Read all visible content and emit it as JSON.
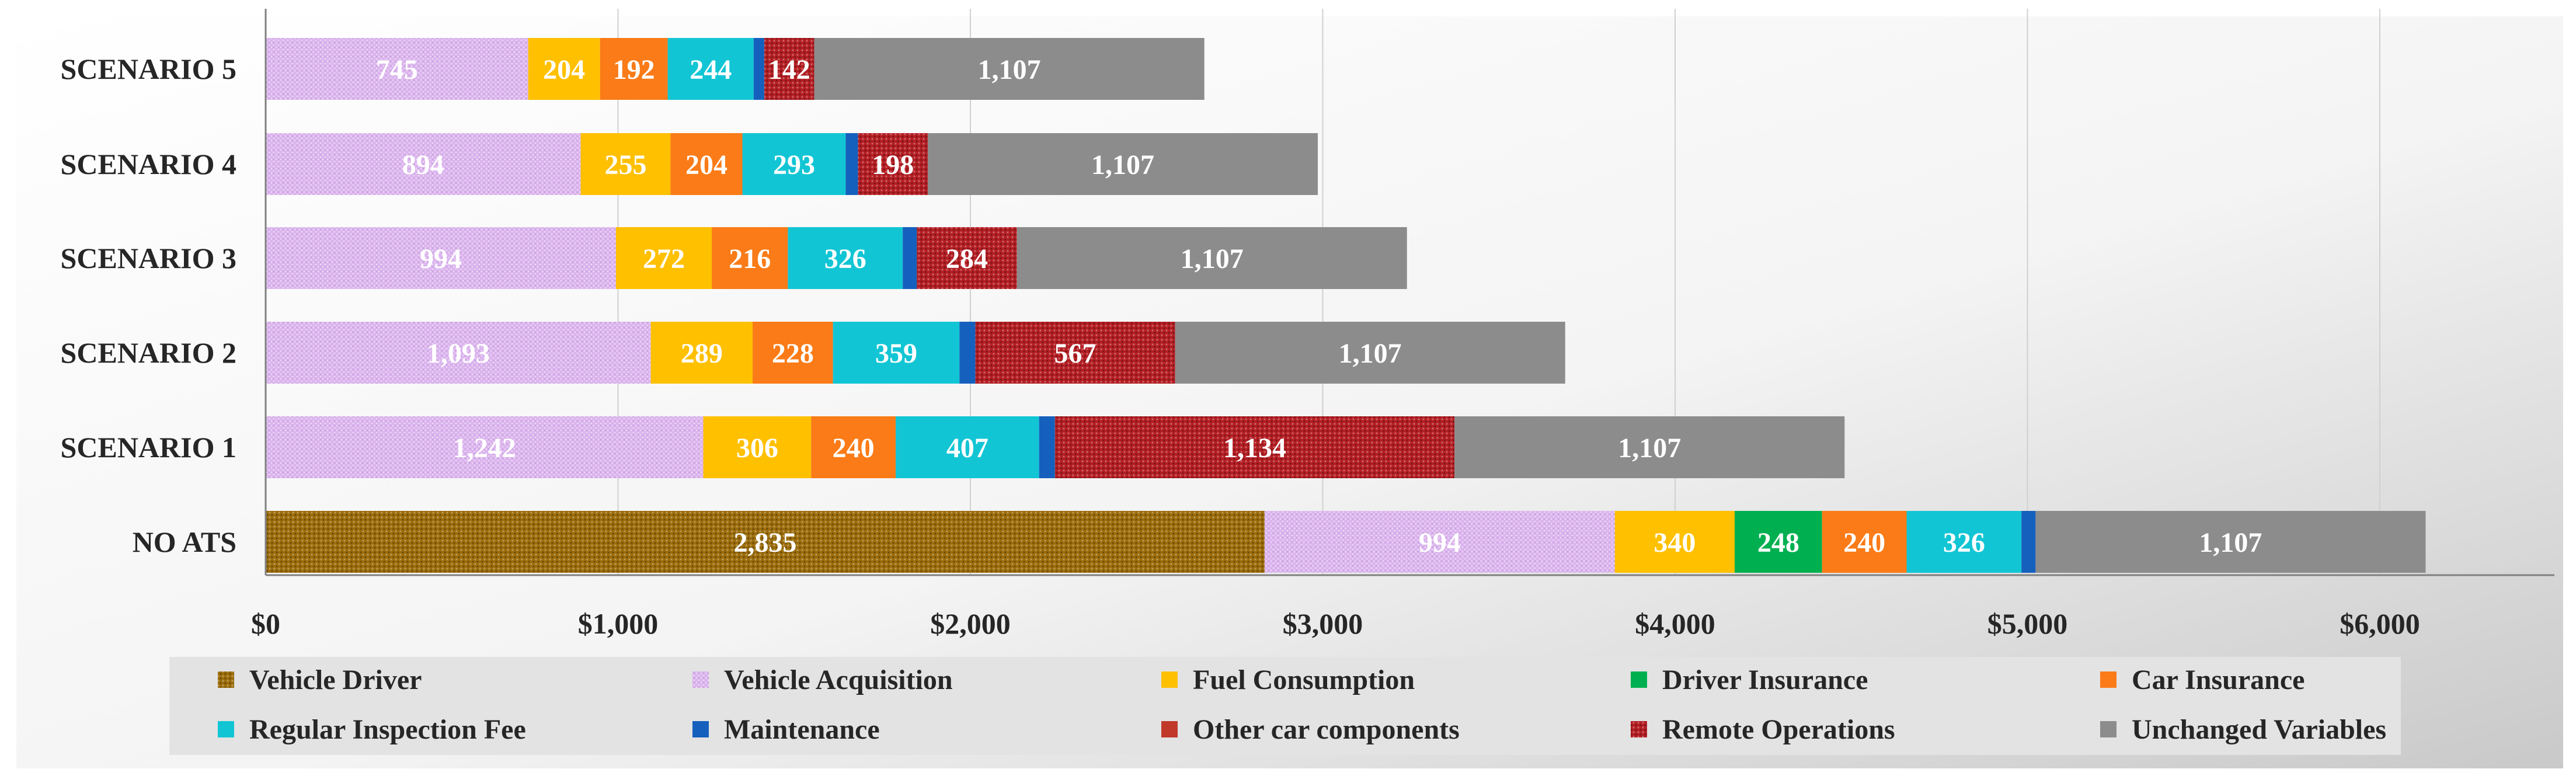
{
  "chart_data": {
    "type": "bar",
    "orientation": "horizontal",
    "stacked": true,
    "title": "",
    "xlabel": "",
    "ylabel": "",
    "xlim": [
      0,
      6500
    ],
    "x_ticks": [
      0,
      1000,
      2000,
      3000,
      4000,
      5000,
      6000
    ],
    "x_tick_labels": [
      "$0",
      "$1,000",
      "$2,000",
      "$3,000",
      "$4,000",
      "$5,000",
      "$6,000"
    ],
    "grid": "vertical",
    "legend_position": "bottom",
    "categories": [
      "NO ATS",
      "SCENARIO 1",
      "SCENARIO 2",
      "SCENARIO 3",
      "SCENARIO 4",
      "SCENARIO 5"
    ],
    "series": [
      {
        "name": "Vehicle Driver",
        "color": "#9c6d0c",
        "pattern": "dots",
        "values": [
          2835,
          0,
          0,
          0,
          0,
          0
        ],
        "labels": [
          "2,835",
          "",
          "",
          "",
          "",
          ""
        ]
      },
      {
        "name": "Vehicle Acquisition",
        "color": "#dcb6ee",
        "pattern": "check",
        "values": [
          994,
          1242,
          1093,
          994,
          894,
          745
        ],
        "labels": [
          "994",
          "1,242",
          "1,093",
          "994",
          "894",
          "745"
        ]
      },
      {
        "name": "Fuel Consumption",
        "color": "#ffc000",
        "pattern": "none",
        "values": [
          340,
          306,
          289,
          272,
          255,
          204
        ],
        "labels": [
          "340",
          "306",
          "289",
          "272",
          "255",
          "204"
        ]
      },
      {
        "name": "Driver Insurance",
        "color": "#00b050",
        "pattern": "none",
        "values": [
          248,
          0,
          0,
          0,
          0,
          0
        ],
        "labels": [
          "248",
          "",
          "",
          "",
          "",
          ""
        ]
      },
      {
        "name": "Car Insurance",
        "color": "#fa7b17",
        "pattern": "none",
        "values": [
          240,
          240,
          228,
          216,
          204,
          192
        ],
        "labels": [
          "240",
          "240",
          "228",
          "216",
          "204",
          "192"
        ]
      },
      {
        "name": "Regular Inspection Fee",
        "color": "#12c5d4",
        "pattern": "none",
        "values": [
          326,
          407,
          359,
          326,
          293,
          244
        ],
        "labels": [
          "326",
          "407",
          "359",
          "326",
          "293",
          "244"
        ]
      },
      {
        "name": "Maintenance",
        "color": "#1560bd",
        "pattern": "none",
        "values": [
          40,
          45,
          45,
          40,
          35,
          30
        ],
        "labels": [
          "",
          "",
          "",
          "",
          "",
          ""
        ]
      },
      {
        "name": "Other car components",
        "color": "#c0392b",
        "pattern": "none",
        "values": [
          0,
          0,
          0,
          0,
          0,
          0
        ],
        "labels": [
          "",
          "",
          "",
          "",
          "",
          ""
        ]
      },
      {
        "name": "Remote Operations",
        "color": "#b41f24",
        "pattern": "dots",
        "values": [
          0,
          1134,
          567,
          284,
          198,
          142
        ],
        "labels": [
          "",
          "1,134",
          "567",
          "284",
          "198",
          "142"
        ]
      },
      {
        "name": "Unchanged Variables",
        "color": "#8c8c8c",
        "pattern": "none",
        "values": [
          1107,
          1107,
          1107,
          1107,
          1107,
          1107
        ],
        "labels": [
          "1,107",
          "1,107",
          "1,107",
          "1,107",
          "1,107",
          "1,107"
        ]
      }
    ]
  }
}
